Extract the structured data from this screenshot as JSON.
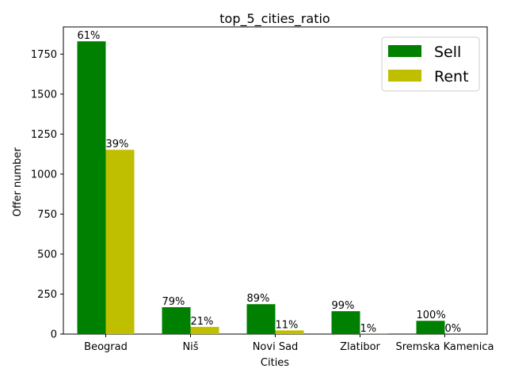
{
  "chart_data": {
    "type": "bar",
    "title": "top_5_cities_ratio",
    "xlabel": "Cities",
    "ylabel": "Offer number",
    "categories": [
      "Beograd",
      "Niš",
      "Novi Sad",
      "Zlatibor",
      "Sremska Kamenica"
    ],
    "series": [
      {
        "name": "Sell",
        "color": "#008000",
        "values": [
          1830,
          168,
          187,
          143,
          83
        ],
        "labels": [
          "61%",
          "79%",
          "89%",
          "99%",
          "100%"
        ]
      },
      {
        "name": "Rent",
        "color": "#bfbf00",
        "values": [
          1152,
          45,
          23,
          1,
          0
        ],
        "labels": [
          "39%",
          "21%",
          "11%",
          "1%",
          "0%"
        ]
      }
    ],
    "ylim": [
      0,
      1920
    ],
    "yticks": [
      0,
      250,
      500,
      750,
      1000,
      1250,
      1500,
      1750
    ],
    "grid": false,
    "legend_position": "top-right"
  }
}
